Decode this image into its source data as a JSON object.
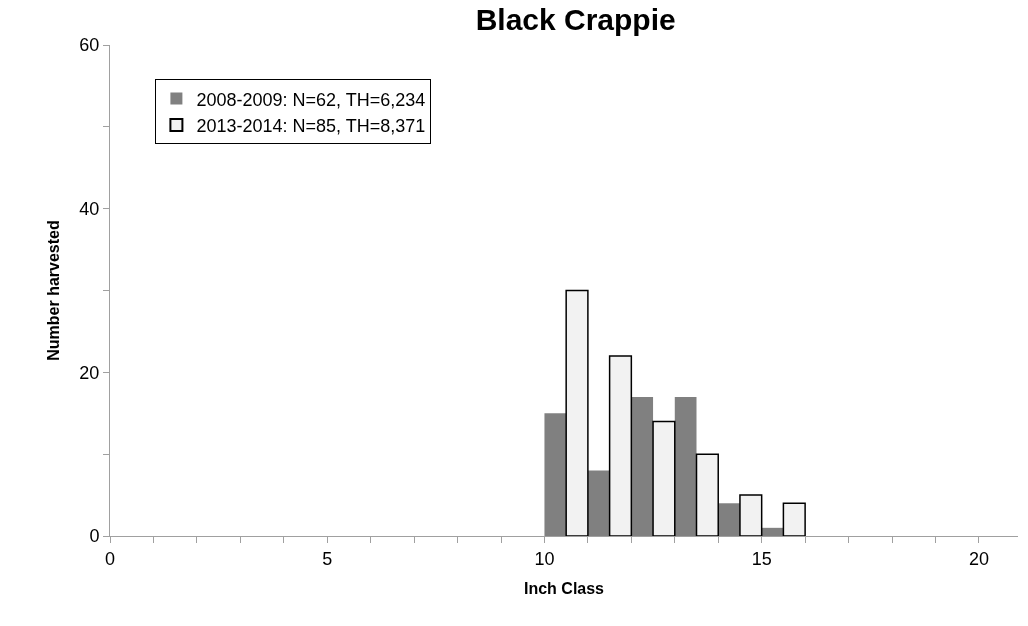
{
  "chart_data": {
    "type": "bar",
    "title": "Black Crappie",
    "xlabel": "Inch Class",
    "ylabel": "Number harvested",
    "series": [
      {
        "name": "2008-2009: N=62, TH=6,234",
        "color": "#808080",
        "x": [
          10.25,
          11.25,
          12.25,
          13.25,
          14.25,
          15.25
        ],
        "values": [
          15,
          8,
          17,
          17,
          4,
          1
        ]
      },
      {
        "name": "2013-2014: N=85, TH=8,371",
        "color": "#f2f2f2",
        "x": [
          10.75,
          11.75,
          12.75,
          13.75,
          14.75,
          15.75
        ],
        "values": [
          30,
          22,
          14,
          10,
          5,
          4
        ]
      }
    ],
    "xlim": [
      0,
      20.9
    ],
    "xticks": [
      0,
      {
        "value": 1,
        "label": null
      },
      {
        "value": 2,
        "label": null
      },
      {
        "value": 3,
        "label": null
      },
      {
        "value": 4,
        "label": null
      },
      5,
      {
        "value": 6,
        "label": null
      },
      {
        "value": 7,
        "label": null
      },
      {
        "value": 8,
        "label": null
      },
      {
        "value": 9,
        "label": null
      },
      10,
      {
        "value": 11,
        "label": null
      },
      {
        "value": 12,
        "label": null
      },
      {
        "value": 13,
        "label": null
      },
      {
        "value": 14,
        "label": null
      },
      15,
      {
        "value": 16,
        "label": null
      },
      {
        "value": 17,
        "label": null
      },
      {
        "value": 18,
        "label": null
      },
      {
        "value": 19,
        "label": null
      },
      20
    ],
    "ylim": [
      0,
      60
    ],
    "yticks": [
      0,
      {
        "value": 10,
        "label": null
      },
      20,
      {
        "value": 30,
        "label": null
      },
      40,
      {
        "value": 50,
        "label": null
      },
      60
    ],
    "legend": "top left"
  }
}
